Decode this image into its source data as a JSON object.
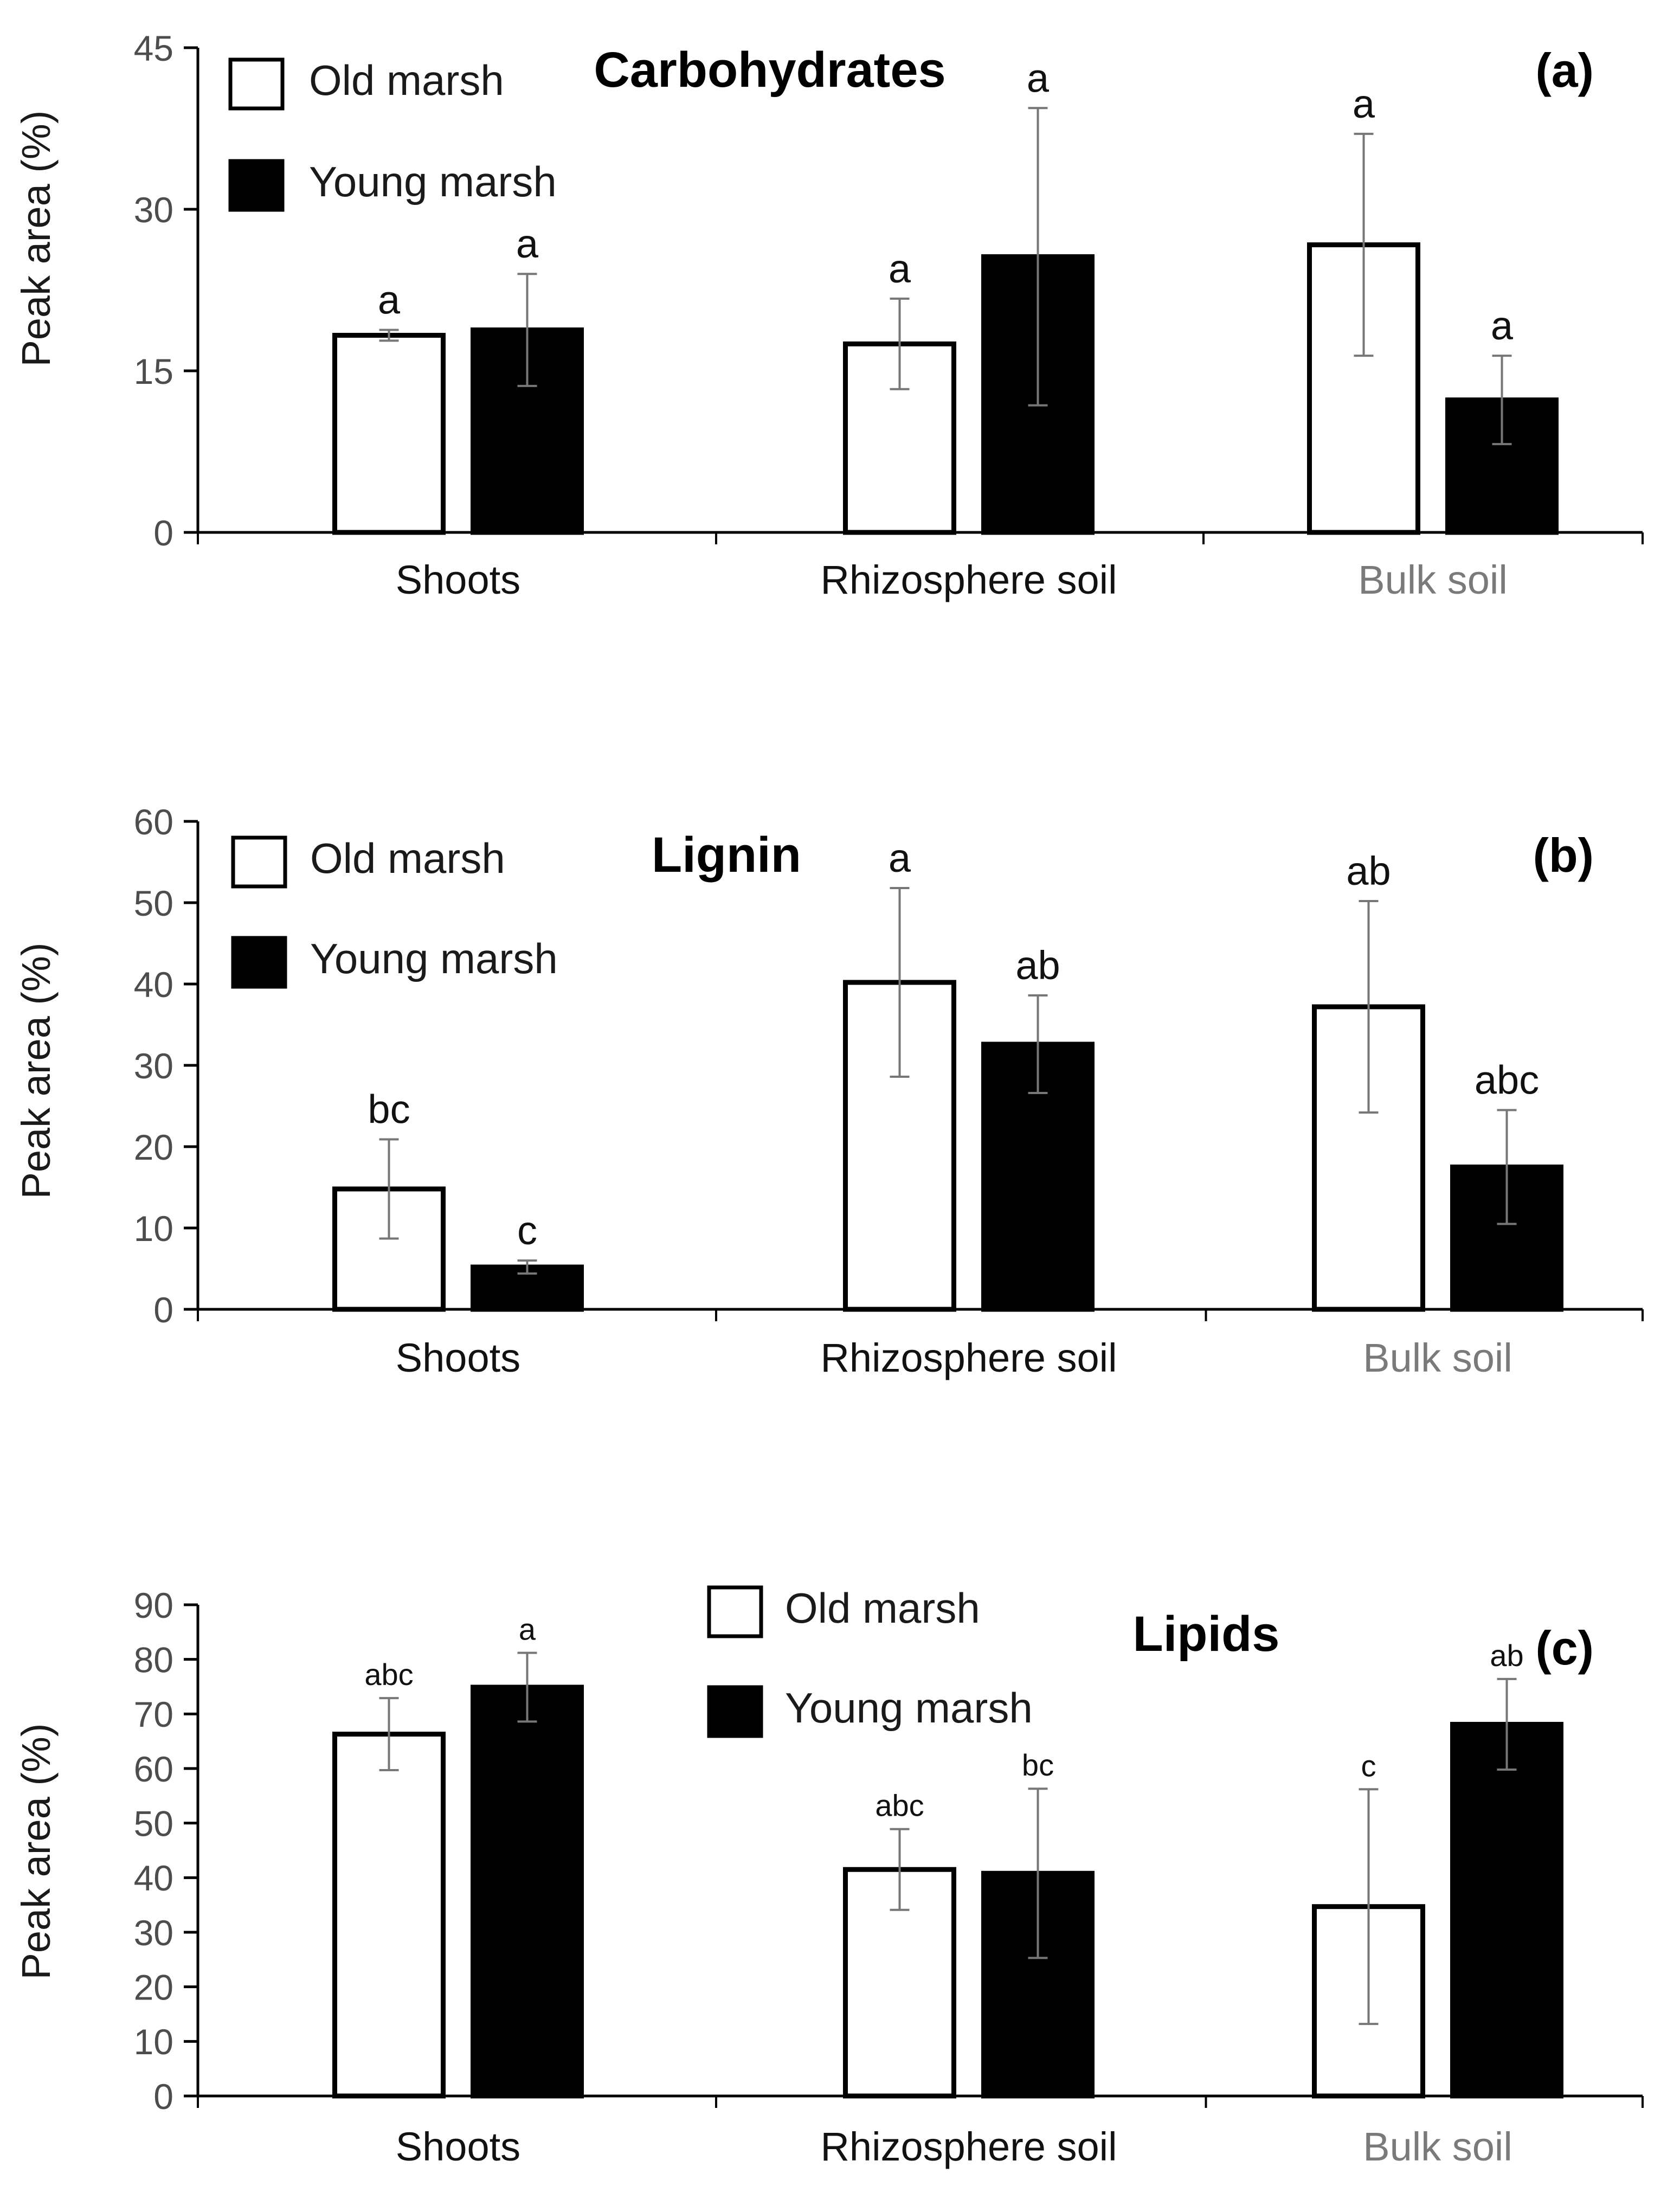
{
  "chart_data": [
    {
      "type": "bar",
      "title": "Carbohydrates",
      "panel": "(a)",
      "ylabel": "Peak area (%)",
      "xlabel": "",
      "ylim": [
        0,
        45
      ],
      "yticks": [
        "0",
        "15",
        "30",
        "45"
      ],
      "categories": [
        "Shoots",
        "Rhizosphere soil",
        "Bulk soil"
      ],
      "legend_position": "top-left",
      "series": [
        {
          "name": "Old marsh",
          "color": "#ffffff",
          "values": [
            18.3,
            17.5,
            26.7
          ],
          "errors": [
            0.5,
            4.2,
            10.3
          ],
          "labels": [
            "a",
            "a",
            "a"
          ]
        },
        {
          "name": "Young marsh",
          "color": "#000000",
          "values": [
            18.8,
            25.6,
            12.3
          ],
          "errors": [
            5.2,
            13.8,
            4.1
          ],
          "labels": [
            "a",
            "a",
            "a"
          ]
        }
      ]
    },
    {
      "type": "bar",
      "title": "Lignin",
      "panel": "(b)",
      "ylabel": "Peak area (%)",
      "xlabel": "",
      "ylim": [
        0,
        60
      ],
      "yticks": [
        "0",
        "10",
        "20",
        "30",
        "40",
        "50",
        "60"
      ],
      "categories": [
        "Shoots",
        "Rhizosphere soil",
        "Bulk soil"
      ],
      "legend_position": "top-left",
      "series": [
        {
          "name": "Old marsh",
          "color": "#ffffff",
          "values": [
            14.8,
            40.2,
            37.2
          ],
          "errors": [
            6.1,
            11.6,
            13.0
          ],
          "labels": [
            "bc",
            "a",
            "ab"
          ]
        },
        {
          "name": "Young marsh",
          "color": "#000000",
          "values": [
            5.2,
            32.6,
            17.5
          ],
          "errors": [
            0.8,
            6.0,
            7.0
          ],
          "labels": [
            "c",
            "ab",
            "abc"
          ]
        }
      ]
    },
    {
      "type": "bar",
      "title": "Lipids",
      "panel": "(c)",
      "ylabel": "Peak area (%)",
      "xlabel": "",
      "ylim": [
        0,
        90
      ],
      "yticks": [
        "0",
        "10",
        "20",
        "30",
        "40",
        "50",
        "60",
        "70",
        "80",
        "90"
      ],
      "categories": [
        "Shoots",
        "Rhizosphere soil",
        "Bulk soil"
      ],
      "legend_position": "top-center",
      "series": [
        {
          "name": "Old marsh",
          "color": "#ffffff",
          "values": [
            66.3,
            41.5,
            34.7
          ],
          "errors": [
            6.6,
            7.4,
            21.5
          ],
          "labels": [
            "abc",
            "abc",
            "c"
          ]
        },
        {
          "name": "Young marsh",
          "color": "#000000",
          "values": [
            74.9,
            40.8,
            68.1
          ],
          "errors": [
            6.3,
            15.5,
            8.3
          ],
          "labels": [
            "a",
            "bc",
            "ab"
          ]
        }
      ]
    }
  ]
}
